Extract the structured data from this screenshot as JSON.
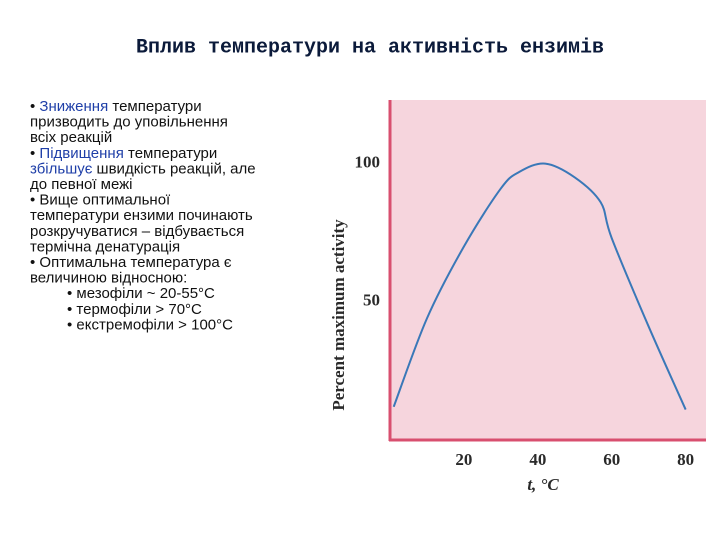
{
  "title": "Вплив температури на активність ензимів",
  "text_lines": [
    {
      "indent": false,
      "parts": [
        "• ",
        {
          "text": "Зниження",
          "color": "#1f3fa8"
        },
        " температури"
      ]
    },
    {
      "indent": false,
      "parts": [
        "призводить до уповільнення"
      ]
    },
    {
      "indent": false,
      "parts": [
        "всіх реакцій"
      ]
    },
    {
      "indent": false,
      "parts": [
        "• ",
        {
          "text": "Підвищення",
          "color": "#1f3fa8"
        },
        " температури"
      ]
    },
    {
      "indent": false,
      "parts": [
        {
          "text": "збільшує",
          "color": "#1f3fa8"
        },
        " швидкість реакцій, але"
      ]
    },
    {
      "indent": false,
      "parts": [
        "до певної межі"
      ]
    },
    {
      "indent": false,
      "parts": [
        "• Вище оптимальної"
      ]
    },
    {
      "indent": false,
      "parts": [
        "температури ензими починають"
      ]
    },
    {
      "indent": false,
      "parts": [
        "розкручуватися – відбувається"
      ]
    },
    {
      "indent": false,
      "parts": [
        "термічна денатурація"
      ]
    },
    {
      "indent": false,
      "parts": [
        "• Оптимальна температура є"
      ]
    },
    {
      "indent": false,
      "parts": [
        "величиною відносною:"
      ]
    },
    {
      "indent": true,
      "parts": [
        "• мезофіли ~ 20-55°C"
      ]
    },
    {
      "indent": true,
      "parts": [
        "• термофіли > 70°C"
      ]
    },
    {
      "indent": true,
      "parts": [
        "• екстремофіли > 100°C"
      ]
    }
  ],
  "chart_data": {
    "type": "line",
    "x_label": "t, °C",
    "y_label": "Percent maximum activity",
    "x": [
      1,
      10,
      20,
      30,
      35,
      42,
      50,
      57,
      60,
      70,
      80
    ],
    "series": [
      {
        "color": "#3a78b8",
        "values": [
          12,
          44,
          70,
          91,
          97,
          100,
          95,
          86,
          73,
          41,
          11
        ]
      }
    ],
    "xlim": [
      0,
      85.5
    ],
    "ylim": [
      0,
      123
    ],
    "xticks": [
      20,
      40,
      60,
      80
    ],
    "yticks": [
      50,
      100
    ],
    "background": "#f6d5dd",
    "axis_color": "#d84f6f"
  }
}
